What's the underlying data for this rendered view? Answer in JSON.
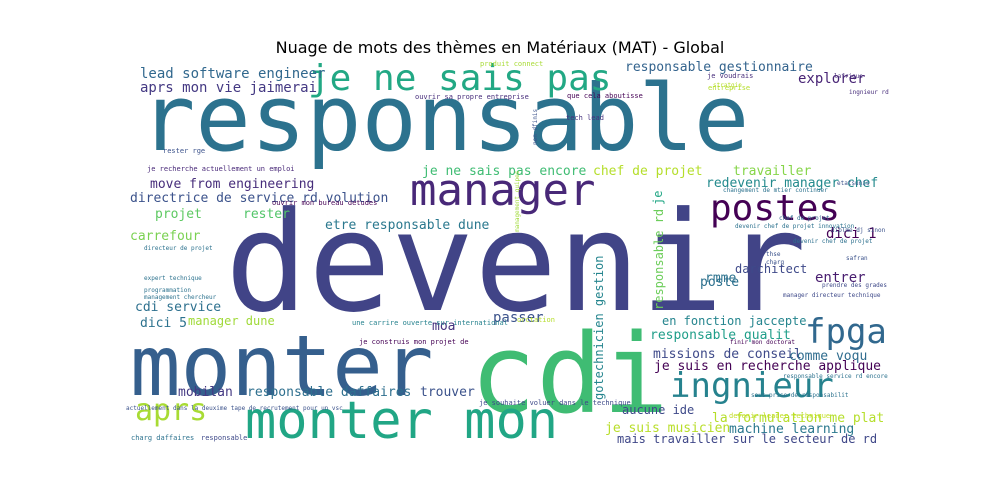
{
  "chart_data": {
    "type": "wordcloud",
    "title": "Nuage de mots des thèmes en Matériaux (MAT) - Global",
    "background": "#ffffff",
    "words": [
      {
        "text": "responsable",
        "color": "#2c728e"
      },
      {
        "text": "devenir",
        "color": "#414487"
      },
      {
        "text": "monter",
        "color": "#355f8d"
      },
      {
        "text": "cdi",
        "color": "#3fbc73"
      },
      {
        "text": "monter mon",
        "color": "#21a685"
      },
      {
        "text": "manager",
        "color": "#482878"
      },
      {
        "text": "je ne sais pas",
        "color": "#22a884"
      },
      {
        "text": "postes",
        "color": "#440154"
      },
      {
        "text": "ingnieur",
        "color": "#26828e"
      },
      {
        "text": "fpga",
        "color": "#31688e"
      },
      {
        "text": "aprs",
        "color": "#a8db34"
      },
      {
        "text": "lead software engineer",
        "color": "#31688e"
      },
      {
        "text": "aprs mon vie jaimerai",
        "color": "#443983"
      },
      {
        "text": "responsable gestionnaire",
        "color": "#33638d"
      },
      {
        "text": "explorer",
        "color": "#482475"
      },
      {
        "text": "je ne sais pas encore",
        "color": "#3fbc73"
      },
      {
        "text": "chef de projet",
        "color": "#b5de2b"
      },
      {
        "text": "travailler",
        "color": "#86d549"
      },
      {
        "text": "redevenir manager chef",
        "color": "#238a8d"
      },
      {
        "text": "move from engineering",
        "color": "#472d7b"
      },
      {
        "text": "directrice de service rd volution",
        "color": "#3b528b"
      },
      {
        "text": "projet",
        "color": "#5ec962"
      },
      {
        "text": "rester",
        "color": "#52c569"
      },
      {
        "text": "etre responsable dune",
        "color": "#2a788e"
      },
      {
        "text": "carrefour",
        "color": "#7ad151"
      },
      {
        "text": "dici 1",
        "color": "#440154"
      },
      {
        "text": "darchitect",
        "color": "#3e4989"
      },
      {
        "text": "rmme",
        "color": "#2c728e"
      },
      {
        "text": "entrer",
        "color": "#481d6f"
      },
      {
        "text": "poste",
        "color": "#2d708e"
      },
      {
        "text": "cdi service",
        "color": "#2d708e"
      },
      {
        "text": "moa",
        "color": "#46327e"
      },
      {
        "text": "passer",
        "color": "#3b528b"
      },
      {
        "text": "dici 5",
        "color": "#2c728e"
      },
      {
        "text": "manager dune",
        "color": "#a0da39"
      },
      {
        "text": "en fonction jaccepte",
        "color": "#25858e"
      },
      {
        "text": "responsable qualit",
        "color": "#1f9e89"
      },
      {
        "text": "missions de conseil",
        "color": "#3e4989"
      },
      {
        "text": "comme voqu",
        "color": "#2f6c8e"
      },
      {
        "text": "je suis en recherche applique",
        "color": "#440154"
      },
      {
        "text": "mobilan",
        "color": "#443983"
      },
      {
        "text": "responsable daffaires",
        "color": "#2e6f8e"
      },
      {
        "text": "trouver",
        "color": "#3b528b"
      },
      {
        "text": "gotechnicien gestion",
        "color": "#25858e"
      },
      {
        "text": "responsable rd",
        "color": "#6ccd5a"
      },
      {
        "text": "je",
        "color": "#22a785"
      },
      {
        "text": "aucune ide",
        "color": "#3e4989"
      },
      {
        "text": "la formulation me plat",
        "color": "#b5de2b"
      },
      {
        "text": "je suis musicien",
        "color": "#b8de29"
      },
      {
        "text": "machine learning",
        "color": "#2a788e"
      },
      {
        "text": "mais travailler sur le secteur de rd",
        "color": "#3f4788"
      },
      {
        "text": "tech lead",
        "color": "#46327e"
      },
      {
        "text": "entreprise",
        "color": "#b5de2b"
      },
      {
        "text": "devenir chef de projet",
        "color": "#2d708e"
      },
      {
        "text": "chef de projet",
        "color": "#31688e"
      },
      {
        "text": "safran",
        "color": "#3b528b"
      },
      {
        "text": "thse",
        "color": "#3b528b"
      },
      {
        "text": "charg",
        "color": "#3b528b"
      },
      {
        "text": "manager directeur technique",
        "color": "#3e4989"
      },
      {
        "text": "prendre des grades",
        "color": "#3e4989"
      },
      {
        "text": "ingnieur rd",
        "color": "#472d7b"
      },
      {
        "text": "lafrique",
        "color": "#472d7b"
      },
      {
        "text": "etatsunis",
        "color": "#3b528b"
      },
      {
        "text": "diplme dj sinon",
        "color": "#3b528b"
      },
      {
        "text": "devenir leader technique",
        "color": "#c2df23"
      },
      {
        "text": "ouvrir mon bureau detudes",
        "color": "#440154"
      },
      {
        "text": "directeur de projet",
        "color": "#2c728e"
      },
      {
        "text": "expert technique",
        "color": "#2c728e"
      },
      {
        "text": "programmation",
        "color": "#2c728e"
      },
      {
        "text": "management chercheur",
        "color": "#2c728e"
      },
      {
        "text": "je recherche actuellement un emploi",
        "color": "#482878"
      },
      {
        "text": "une carrire ouverte sur international",
        "color": "#26828e"
      },
      {
        "text": "je construis mon projet de",
        "color": "#440154"
      },
      {
        "text": "je souhaite voluer dans le technique",
        "color": "#3e4989"
      },
      {
        "text": "actuellement dans la deuxime tape de recrutement pour un vsc",
        "color": "#3b528b"
      },
      {
        "text": "charg daffaires",
        "color": "#2c728e"
      },
      {
        "text": "responsable",
        "color": "#3e4989"
      },
      {
        "text": "finir mon doctorat",
        "color": "#440154"
      },
      {
        "text": "changement de mtier continuer",
        "color": "#2c728e"
      },
      {
        "text": "devenir chef de projet innovation",
        "color": "#2c728e"
      },
      {
        "text": "ouvrir sa propre entreprise",
        "color": "#472d7b"
      },
      {
        "text": "que cela aboutisse",
        "color": "#440154"
      },
      {
        "text": "je voudrais",
        "color": "#472d7b"
      },
      {
        "text": "produit connect",
        "color": "#a8db34"
      },
      {
        "text": "responsable service rd encore",
        "color": "#2c728e"
      },
      {
        "text": "orctation",
        "color": "#b5de2b"
      },
      {
        "text": "management quipes",
        "color": "#a0da39"
      },
      {
        "text": "rester rge",
        "color": "#3b528b"
      },
      {
        "text": "nen dfinis",
        "color": "#3b528b"
      },
      {
        "text": "sous prise de responsabilit",
        "color": "#2c728e"
      },
      {
        "text": "stratgie",
        "color": "#b5de2b"
      }
    ]
  }
}
